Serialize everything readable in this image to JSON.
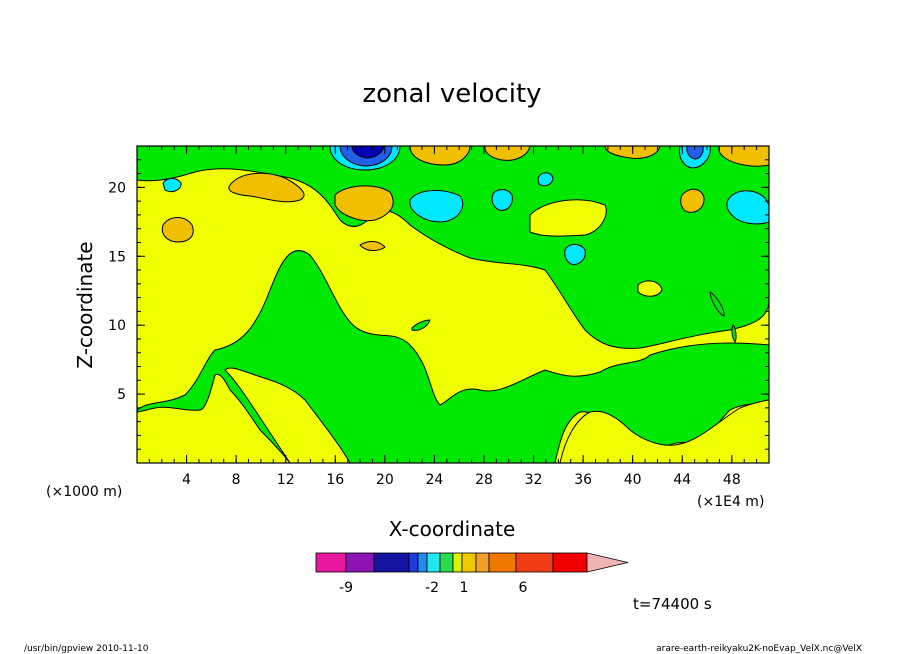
{
  "chart_data": {
    "type": "heatmap",
    "title": "zonal velocity",
    "xlabel": "X-coordinate",
    "ylabel": "Z-coordinate",
    "x_unit_left": "(×1000 m)",
    "x_unit_right": "(×1E4 m)",
    "x_ticks": [
      "4",
      "8",
      "12",
      "16",
      "20",
      "24",
      "28",
      "32",
      "36",
      "40",
      "44",
      "48"
    ],
    "y_ticks": [
      "5",
      "10",
      "15",
      "20"
    ],
    "xlim": [
      0,
      51
    ],
    "ylim": [
      0,
      23
    ],
    "colorbar": {
      "labels": [
        {
          "text": "-9",
          "value": -9
        },
        {
          "text": "-2",
          "value": -2
        },
        {
          "text": "1",
          "value": 1
        },
        {
          "text": "6",
          "value": 6
        }
      ],
      "colors": [
        "#e8169c",
        "#8c14b4",
        "#1414a0",
        "#1e3cdc",
        "#1e8cf0",
        "#20e6f0",
        "#28dc50",
        "#dcf000",
        "#f0c800",
        "#f0a028",
        "#f07800",
        "#f03c14",
        "#f00000",
        "#f07878",
        "#f0b4b4"
      ]
    },
    "field_colors": {
      "background_positive": "#f0ff00",
      "weak_negative": "#00e800",
      "moderate_negative": "#00e8ff",
      "strong_negative": "#2060e8",
      "very_strong_negative": "#0000b8",
      "moderate_positive": "#f0c000"
    }
  },
  "footer": {
    "time": "t=74400 s",
    "program": "/usr/bin/gpview  2010-11-10",
    "source": "arare-earth-reikyaku2K-noEvap_VelX.nc@VelX"
  }
}
